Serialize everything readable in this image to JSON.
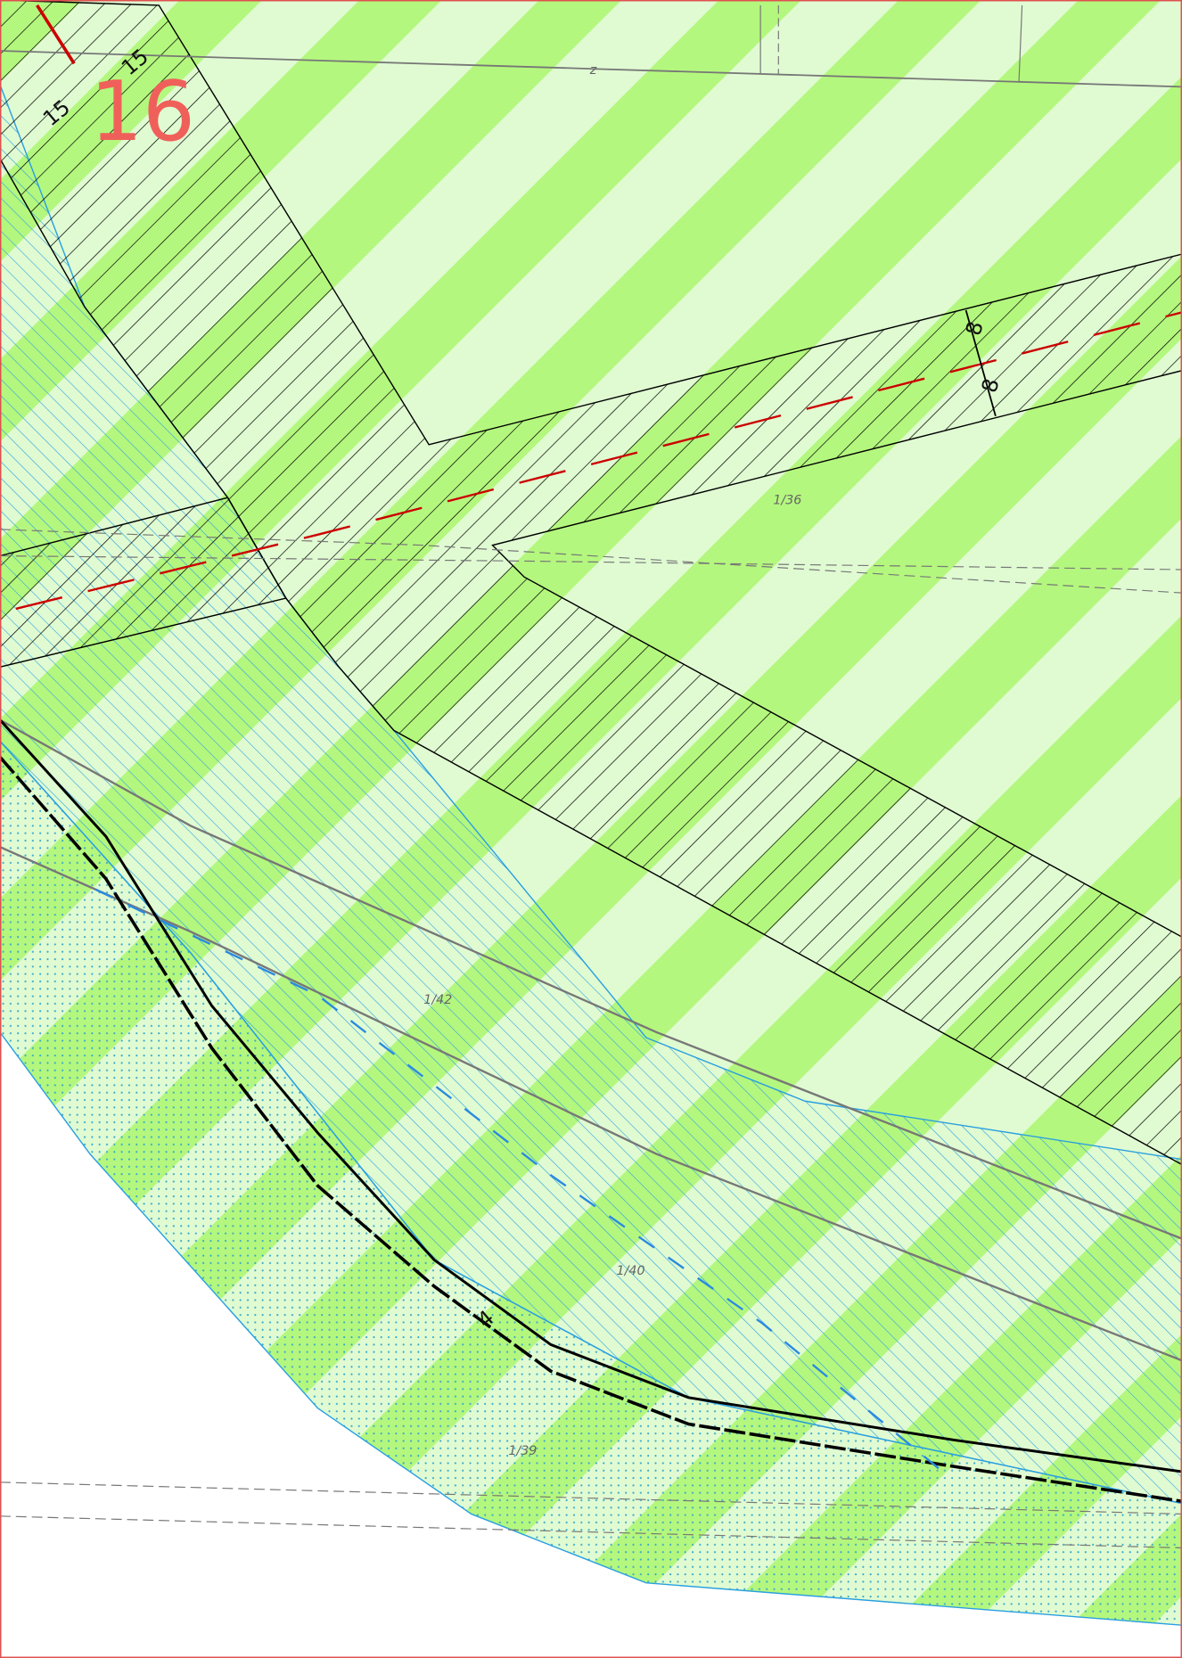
{
  "map": {
    "sheet_number": "16",
    "dimensions": [
      "15",
      "15",
      "8",
      "8"
    ],
    "parcels": [
      "1/36",
      "1/42",
      "1/40",
      "1/39"
    ],
    "marks": [
      "z",
      "4"
    ]
  }
}
